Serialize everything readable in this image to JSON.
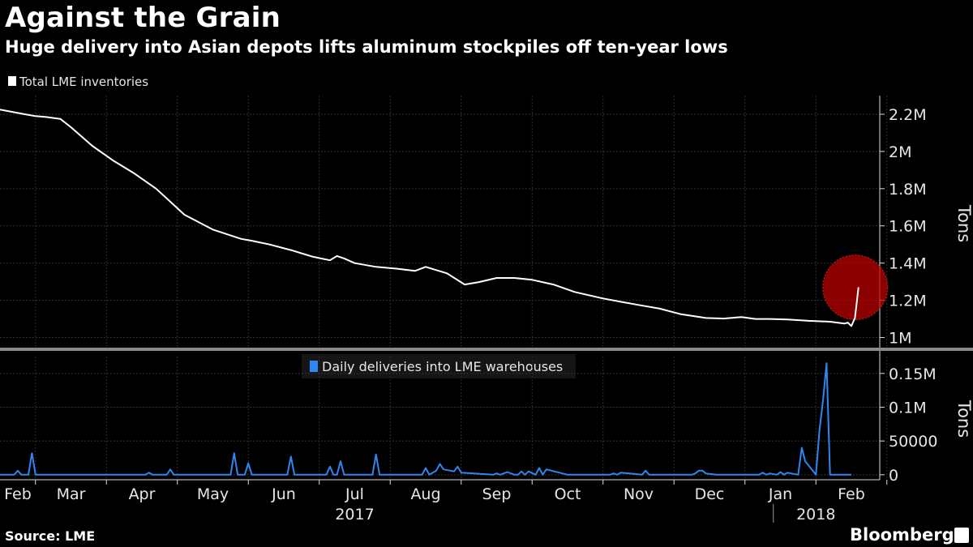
{
  "title": "Against the Grain",
  "subtitle": "Huge delivery into Asian depots lifts aluminum stockpiles off ten-year lows",
  "source": "Source: LME",
  "brand": "Bloomberg",
  "colors": {
    "background": "#000000",
    "inventory_line": "#ffffff",
    "deliveries_line": "#2e86f0",
    "highlight": "#c00000",
    "grid": "#3a3a3a"
  },
  "chart_data": [
    {
      "type": "line",
      "name": "inventories",
      "legend": "Total LME inventories",
      "ylabel": "Tons",
      "ylim": [
        950000,
        2300000
      ],
      "xlim": [
        0,
        12.4
      ],
      "y_ticks": [
        1000000,
        1200000,
        1400000,
        1600000,
        1800000,
        2000000,
        2200000
      ],
      "y_tick_labels": [
        "1M",
        "1.2M",
        "1.4M",
        "1.6M",
        "1.8M",
        "2M",
        "2.2M"
      ],
      "x": [
        0,
        0.35,
        0.5,
        0.65,
        0.85,
        1.0,
        1.3,
        1.6,
        1.9,
        2.2,
        2.4,
        2.6,
        3.0,
        3.4,
        3.55,
        3.8,
        4.1,
        4.4,
        4.65,
        4.75,
        4.85,
        5.0,
        5.3,
        5.6,
        5.85,
        6.0,
        6.3,
        6.55,
        6.75,
        7.0,
        7.25,
        7.5,
        7.8,
        8.1,
        8.5,
        8.75,
        9.0,
        9.3,
        9.6,
        9.95,
        10.2,
        10.45,
        10.65,
        10.85,
        11.1,
        11.4,
        11.7,
        11.9,
        11.95,
        12.0,
        12.05,
        12.1
      ],
      "y": [
        2225000,
        2200000,
        2190000,
        2185000,
        2175000,
        2130000,
        2030000,
        1950000,
        1880000,
        1800000,
        1730000,
        1660000,
        1580000,
        1530000,
        1520000,
        1500000,
        1470000,
        1435000,
        1415000,
        1438000,
        1425000,
        1400000,
        1380000,
        1370000,
        1358000,
        1380000,
        1345000,
        1285000,
        1298000,
        1320000,
        1320000,
        1310000,
        1285000,
        1245000,
        1210000,
        1192000,
        1175000,
        1155000,
        1125000,
        1105000,
        1102000,
        1110000,
        1100000,
        1100000,
        1097000,
        1090000,
        1085000,
        1075000,
        1080000,
        1062000,
        1105000,
        1270000
      ]
    },
    {
      "type": "line",
      "name": "deliveries",
      "legend": "Daily deliveries into LME warehouses",
      "ylabel": "Tons",
      "ylim": [
        -5000,
        175000
      ],
      "xlim": [
        0,
        12.4
      ],
      "y_ticks": [
        0,
        50000,
        100000,
        150000
      ],
      "y_tick_labels": [
        "0",
        "50000",
        "0.1M",
        "0.15M"
      ],
      "x_tick_labels": [
        "Feb",
        "Mar",
        "Apr",
        "May",
        "Jun",
        "Jul",
        "Aug",
        "Sep",
        "Oct",
        "Nov",
        "Dec",
        "Jan",
        "Feb"
      ],
      "year_labels": [
        "2017",
        "2018"
      ],
      "x": [
        0,
        0.2,
        0.25,
        0.3,
        0.4,
        0.45,
        0.5,
        0.55,
        2.05,
        2.1,
        2.15,
        2.35,
        2.4,
        2.45,
        3.25,
        3.3,
        3.35,
        3.45,
        3.5,
        3.55,
        4.05,
        4.1,
        4.15,
        4.6,
        4.65,
        4.7,
        4.75,
        4.8,
        4.85,
        4.9,
        5.25,
        5.3,
        5.35,
        5.95,
        6.0,
        6.05,
        6.15,
        6.2,
        6.25,
        6.4,
        6.45,
        6.5,
        6.95,
        7.0,
        7.05,
        7.15,
        7.25,
        7.3,
        7.35,
        7.4,
        7.45,
        7.55,
        7.6,
        7.65,
        7.7,
        8.0,
        8.6,
        8.65,
        8.7,
        8.75,
        9.05,
        9.1,
        9.15,
        9.75,
        9.8,
        9.85,
        9.9,
        9.95,
        10.1,
        10.7,
        10.75,
        10.8,
        10.85,
        10.95,
        11.0,
        11.05,
        11.1,
        11.15,
        11.25,
        11.3,
        11.35,
        11.5,
        11.55,
        11.6,
        11.65,
        11.7,
        11.8,
        11.85,
        11.9,
        12.0
      ],
      "y": [
        0,
        0,
        6000,
        0,
        0,
        32000,
        0,
        0,
        0,
        3000,
        0,
        0,
        8000,
        0,
        0,
        32000,
        0,
        0,
        17000,
        0,
        0,
        27000,
        0,
        0,
        12000,
        0,
        0,
        20000,
        0,
        0,
        0,
        30000,
        0,
        0,
        10000,
        0,
        6000,
        16000,
        8000,
        5000,
        12000,
        3000,
        0,
        2000,
        0,
        4000,
        0,
        0,
        5000,
        0,
        5000,
        0,
        10000,
        0,
        8000,
        0,
        0,
        2000,
        0,
        3000,
        0,
        6000,
        0,
        0,
        2000,
        6000,
        6000,
        2000,
        0,
        0,
        3000,
        0,
        2000,
        0,
        4000,
        0,
        3000,
        2000,
        0,
        40000,
        20000,
        0,
        65000,
        110000,
        165000,
        0,
        0,
        0,
        0,
        0
      ]
    }
  ]
}
